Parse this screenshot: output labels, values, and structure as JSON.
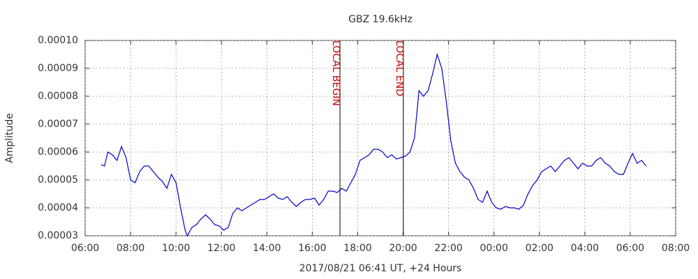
{
  "chart_data": {
    "type": "line",
    "title": "GBZ 19.6kHz",
    "x_label": "2017/08/21 06:41 UT, +24 Hours",
    "y_label": "Amplitude",
    "color": "#0000cc",
    "grid": true,
    "xlim": [
      6,
      32
    ],
    "xticks": [
      {
        "value": 6,
        "label": "06:00"
      },
      {
        "value": 8,
        "label": "08:00"
      },
      {
        "value": 10,
        "label": "10:00"
      },
      {
        "value": 12,
        "label": "12:00"
      },
      {
        "value": 14,
        "label": "14:00"
      },
      {
        "value": 16,
        "label": "16:00"
      },
      {
        "value": 18,
        "label": "18:00"
      },
      {
        "value": 20,
        "label": "20:00"
      },
      {
        "value": 22,
        "label": "22:00"
      },
      {
        "value": 24,
        "label": "00:00"
      },
      {
        "value": 26,
        "label": "02:00"
      },
      {
        "value": 28,
        "label": "04:00"
      },
      {
        "value": 30,
        "label": "06:00"
      },
      {
        "value": 32,
        "label": "08:00"
      }
    ],
    "ylim": [
      3e-05,
      0.0001
    ],
    "yticks": [
      {
        "value": 3e-05,
        "label": "0.00003"
      },
      {
        "value": 4e-05,
        "label": "0.00004"
      },
      {
        "value": 5e-05,
        "label": "0.00005"
      },
      {
        "value": 6e-05,
        "label": "0.00006"
      },
      {
        "value": 7e-05,
        "label": "0.00007"
      },
      {
        "value": 8e-05,
        "label": "0.00008"
      },
      {
        "value": 9e-05,
        "label": "0.00009"
      },
      {
        "value": 0.0001,
        "label": "0.00010"
      }
    ],
    "annotations": [
      {
        "x": 17.22,
        "text": "LOCAL BEGIN",
        "color": "#cc0000"
      },
      {
        "x": 20.01,
        "text": "LOCAL END",
        "color": "#cc0000"
      }
    ],
    "x": [
      6.7,
      6.85,
      7.0,
      7.2,
      7.4,
      7.6,
      7.8,
      8.0,
      8.2,
      8.4,
      8.6,
      8.8,
      9.0,
      9.2,
      9.4,
      9.6,
      9.8,
      10.0,
      10.2,
      10.4,
      10.5,
      10.7,
      10.9,
      11.1,
      11.3,
      11.5,
      11.7,
      11.9,
      12.1,
      12.3,
      12.5,
      12.7,
      12.9,
      13.1,
      13.3,
      13.5,
      13.7,
      13.9,
      14.1,
      14.3,
      14.5,
      14.7,
      14.9,
      15.1,
      15.3,
      15.5,
      15.7,
      15.9,
      16.1,
      16.3,
      16.5,
      16.7,
      16.9,
      17.1,
      17.3,
      17.5,
      17.7,
      17.9,
      18.1,
      18.3,
      18.5,
      18.7,
      18.9,
      19.1,
      19.3,
      19.5,
      19.7,
      19.9,
      20.1,
      20.3,
      20.5,
      20.7,
      20.9,
      21.1,
      21.3,
      21.5,
      21.7,
      21.9,
      22.1,
      22.3,
      22.5,
      22.7,
      22.9,
      23.1,
      23.3,
      23.5,
      23.7,
      23.9,
      24.1,
      24.3,
      24.5,
      24.7,
      24.9,
      25.1,
      25.3,
      25.5,
      25.7,
      25.9,
      26.1,
      26.3,
      26.5,
      26.7,
      26.9,
      27.1,
      27.3,
      27.5,
      27.7,
      27.9,
      28.1,
      28.3,
      28.5,
      28.7,
      28.9,
      29.1,
      29.3,
      29.5,
      29.7,
      29.9,
      30.1,
      30.3,
      30.5,
      30.7
    ],
    "values": [
      5.55e-05,
      5.5e-05,
      6e-05,
      5.9e-05,
      5.7e-05,
      6.2e-05,
      5.8e-05,
      5e-05,
      4.9e-05,
      5.3e-05,
      5.5e-05,
      5.5e-05,
      5.3e-05,
      5.1e-05,
      4.95e-05,
      4.7e-05,
      5.2e-05,
      4.9e-05,
      4e-05,
      3.2e-05,
      3e-05,
      3.3e-05,
      3.4e-05,
      3.6e-05,
      3.75e-05,
      3.6e-05,
      3.4e-05,
      3.35e-05,
      3.2e-05,
      3.3e-05,
      3.8e-05,
      4e-05,
      3.9e-05,
      4e-05,
      4.1e-05,
      4.2e-05,
      4.3e-05,
      4.3e-05,
      4.4e-05,
      4.5e-05,
      4.35e-05,
      4.3e-05,
      4.4e-05,
      4.2e-05,
      4.05e-05,
      4.2e-05,
      4.3e-05,
      4.3e-05,
      4.35e-05,
      4.1e-05,
      4.3e-05,
      4.6e-05,
      4.6e-05,
      4.55e-05,
      4.7e-05,
      4.6e-05,
      4.9e-05,
      5.2e-05,
      5.7e-05,
      5.8e-05,
      5.9e-05,
      6.1e-05,
      6.1e-05,
      6e-05,
      5.8e-05,
      5.9e-05,
      5.75e-05,
      5.8e-05,
      5.85e-05,
      6e-05,
      6.5e-05,
      8.2e-05,
      8e-05,
      8.2e-05,
      8.8e-05,
      9.5e-05,
      9e-05,
      7.8e-05,
      6.4e-05,
      5.6e-05,
      5.3e-05,
      5.1e-05,
      5e-05,
      4.7e-05,
      4.3e-05,
      4.2e-05,
      4.6e-05,
      4.2e-05,
      4e-05,
      3.95e-05,
      4.05e-05,
      4e-05,
      4e-05,
      3.95e-05,
      4.1e-05,
      4.5e-05,
      4.8e-05,
      5e-05,
      5.3e-05,
      5.4e-05,
      5.5e-05,
      5.3e-05,
      5.5e-05,
      5.7e-05,
      5.8e-05,
      5.6e-05,
      5.4e-05,
      5.6e-05,
      5.5e-05,
      5.5e-05,
      5.7e-05,
      5.8e-05,
      5.6e-05,
      5.5e-05,
      5.3e-05,
      5.2e-05,
      5.2e-05,
      5.6e-05,
      5.95e-05,
      5.6e-05,
      5.7e-05,
      5.5e-05
    ]
  }
}
